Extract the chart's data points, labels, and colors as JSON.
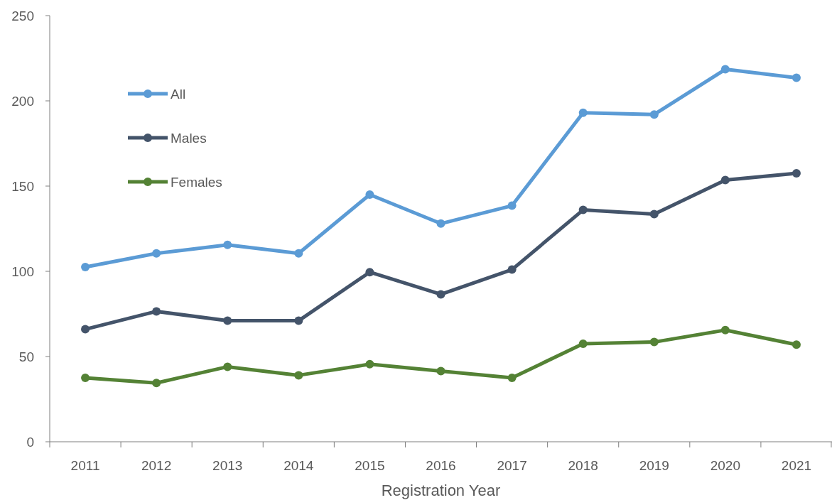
{
  "chart_data": {
    "type": "line",
    "xlabel": "Registration Year",
    "categories": [
      "2011",
      "2012",
      "2013",
      "2014",
      "2015",
      "2016",
      "2017",
      "2018",
      "2019",
      "2020",
      "2021"
    ],
    "series": [
      {
        "name": "All",
        "color": "#5b9bd5",
        "values": [
          102.5,
          110.5,
          115.5,
          110.5,
          145,
          128,
          138.5,
          193,
          192,
          218.5,
          213.5
        ]
      },
      {
        "name": "Males",
        "color": "#44546a",
        "values": [
          66,
          76.5,
          71,
          71,
          99.5,
          86.5,
          101,
          136,
          133.5,
          153.5,
          157.5
        ]
      },
      {
        "name": "Females",
        "color": "#548235",
        "values": [
          37.5,
          34.5,
          44,
          39,
          45.5,
          41.5,
          37.5,
          57.5,
          58.5,
          65.5,
          57
        ]
      }
    ],
    "ylim": [
      0,
      250
    ],
    "yticks": [
      0,
      50,
      100,
      150,
      200,
      250
    ],
    "grid": false,
    "legend": "top left",
    "marker": "circle",
    "line_style": "solid"
  }
}
